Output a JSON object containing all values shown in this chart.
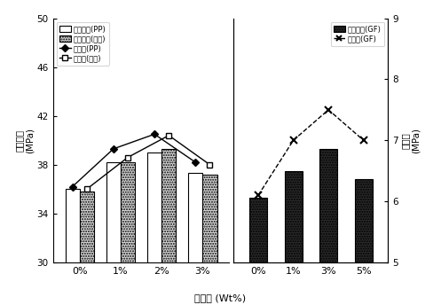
{
  "left_categories": [
    "0%",
    "1%",
    "2%",
    "3%"
  ],
  "right_categories": [
    "0%",
    "1%",
    "3%",
    "5%"
  ],
  "bar_PP": [
    36.0,
    38.2,
    39.0,
    37.3
  ],
  "bar_nongbok": [
    35.8,
    38.2,
    39.3,
    37.2
  ],
  "line_PP": [
    36.2,
    39.3,
    40.5,
    38.2
  ],
  "line_nongbok": [
    36.0,
    38.6,
    40.4,
    38.0
  ],
  "bar_GF": [
    35.3,
    37.5,
    39.3,
    36.8
  ],
  "line_GF": [
    6.1,
    7.0,
    7.5,
    7.0
  ],
  "left_ylim": [
    30,
    50
  ],
  "left_yticks": [
    30,
    34,
    38,
    42,
    46,
    50
  ],
  "right_ylim": [
    5,
    9
  ],
  "right_yticks": [
    5,
    6,
    7,
    8,
    9
  ],
  "xlabel": "혼입률 (Wt%)",
  "ylabel_left": "압축강도  (MPa)",
  "ylabel_right": "휨강도  (MPa)",
  "legend1": [
    "압축강도(PP)",
    "압축강도(망복)",
    "휨강도(PP)",
    "휨강도(망복)"
  ],
  "legend2": [
    "압축강도(GF)",
    "휨강도(GF)"
  ],
  "bar_color_PP": "#ffffff",
  "bar_color_nongbok": "#d8d8d8",
  "bar_color_GF": "#2a2a2a",
  "line_color": "#000000",
  "background": "#ffffff"
}
